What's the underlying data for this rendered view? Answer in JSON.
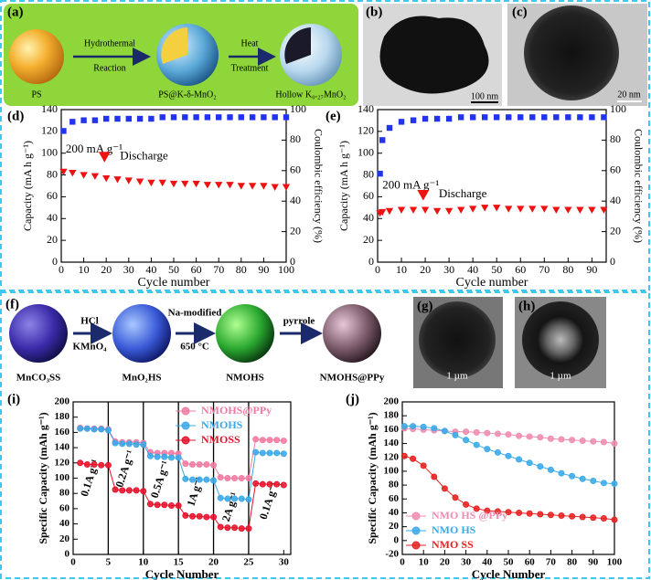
{
  "schematic_a": {
    "label": "(a)",
    "step1": [
      "Hydrothermal",
      "Reaction"
    ],
    "step2": [
      "Heat",
      "Treatment"
    ],
    "stages": [
      "PS",
      "PS@K-δ-MnO₂",
      "Hollow K₀.₂₇MnO₂"
    ]
  },
  "tem_b": {
    "label": "(b)",
    "scale": "100 nm"
  },
  "tem_c": {
    "label": "(c)",
    "scale": "20 nm"
  },
  "schematic_f": {
    "label": "(f)",
    "arrows": [
      [
        "HCl",
        "KMnO₄"
      ],
      [
        "Na-modified",
        "650 °C"
      ],
      [
        "pyrrole"
      ]
    ],
    "stages": [
      "MnCO₃SS",
      "MnO₂HS",
      "NMOHS",
      "NMOHS@PPy"
    ]
  },
  "tem_g": {
    "label": "(g)",
    "scale": "1 µm"
  },
  "tem_h": {
    "label": "(h)",
    "scale": "1 µm"
  },
  "chart_data": [
    {
      "type": "scatter",
      "label": "(d)",
      "xlabel": "Cycle number",
      "ylabel": "Capacity (mA h g⁻¹)",
      "y2label": "Coulombic efficiency (%)",
      "xlim": [
        0,
        100
      ],
      "xticks": [
        0,
        10,
        20,
        30,
        40,
        50,
        60,
        70,
        80,
        90,
        100
      ],
      "ylim": [
        0,
        140
      ],
      "yticks": [
        0,
        20,
        40,
        60,
        80,
        100,
        120,
        140
      ],
      "y2lim": [
        0,
        100
      ],
      "y2ticks": [
        0,
        20,
        40,
        60,
        80,
        100
      ],
      "connect": false,
      "legend": "center left",
      "annotations": [
        "200 mA g⁻¹"
      ],
      "x": [
        1,
        5,
        10,
        15,
        20,
        25,
        30,
        35,
        40,
        45,
        50,
        55,
        60,
        65,
        70,
        75,
        80,
        85,
        90,
        95,
        100
      ],
      "series": [
        {
          "name": "Discharge",
          "color": "#ee1111",
          "marker": "triangle",
          "values": [
            83,
            82,
            80,
            79,
            77,
            76,
            75,
            74,
            73,
            73,
            72,
            72,
            72,
            71,
            71,
            71,
            70,
            70,
            70,
            69,
            69
          ]
        },
        {
          "color": "#2233ee",
          "marker": "square",
          "axis": "y2",
          "values": [
            86,
            92,
            93,
            93,
            94,
            94,
            94,
            94,
            94,
            95,
            95,
            95,
            95,
            95,
            95,
            95,
            95,
            95,
            95,
            95,
            95
          ]
        }
      ]
    },
    {
      "type": "scatter",
      "label": "(e)",
      "xlabel": "Cycle number",
      "ylabel": "Capacity (mA h g⁻¹)",
      "y2label": "Coulombic efficiency (%)",
      "xlim": [
        0,
        96
      ],
      "xticks": [
        0,
        10,
        20,
        30,
        40,
        50,
        60,
        70,
        80,
        90
      ],
      "ylim": [
        0,
        140
      ],
      "yticks": [
        0,
        20,
        40,
        60,
        80,
        100,
        120,
        140
      ],
      "y2lim": [
        0,
        100
      ],
      "y2ticks": [
        0,
        20,
        40,
        60,
        80,
        100
      ],
      "connect": false,
      "legend": "center left",
      "annotations": [
        "200 mA g⁻¹"
      ],
      "x": [
        1,
        2,
        5,
        10,
        15,
        20,
        25,
        30,
        35,
        40,
        45,
        50,
        55,
        60,
        65,
        70,
        75,
        80,
        85,
        90,
        95
      ],
      "series": [
        {
          "name": "Discharge",
          "color": "#ee1111",
          "marker": "triangle",
          "values": [
            45,
            46,
            47,
            48,
            48,
            48,
            47,
            47,
            48,
            49,
            50,
            50,
            49,
            49,
            49,
            49,
            48,
            48,
            48,
            48,
            48
          ]
        },
        {
          "color": "#2233ee",
          "marker": "square",
          "axis": "y2",
          "values": [
            58,
            80,
            88,
            92,
            93,
            94,
            94,
            94,
            95,
            95,
            95,
            95,
            95,
            95,
            95,
            95,
            95,
            95,
            95,
            95,
            95
          ]
        }
      ]
    },
    {
      "type": "line",
      "label": "(i)",
      "xlabel": "Cycle Number",
      "ylabel": "Specific Capacity (mAh g⁻¹)",
      "xlim": [
        0,
        31
      ],
      "xticks": [
        0,
        5,
        10,
        15,
        20,
        25,
        30
      ],
      "ylim": [
        0,
        200
      ],
      "yticks": [
        0,
        20,
        40,
        60,
        80,
        100,
        120,
        140,
        160,
        180,
        200
      ],
      "connect": true,
      "legend": "upper right",
      "vlines": [
        5,
        10,
        15,
        20,
        25
      ],
      "annotations": [
        "0.1A g⁻¹",
        "0.2A g⁻¹",
        "0.5A g⁻¹",
        "1A g⁻¹",
        "2A g⁻¹",
        "0.1A g⁻¹"
      ],
      "x": [
        1,
        2,
        3,
        4,
        5,
        6,
        7,
        8,
        9,
        10,
        11,
        12,
        13,
        14,
        15,
        16,
        17,
        18,
        19,
        20,
        21,
        22,
        23,
        24,
        25,
        26,
        27,
        28,
        29,
        30
      ],
      "series": [
        {
          "name": "NMOHS@PPy",
          "color": "#f27aa0",
          "marker": "circle",
          "values": [
            166,
            165,
            165,
            165,
            164,
            148,
            147,
            147,
            147,
            146,
            134,
            133,
            133,
            133,
            132,
            119,
            118,
            118,
            118,
            117,
            101,
            100,
            100,
            100,
            100,
            151,
            150,
            150,
            150,
            149
          ]
        },
        {
          "name": "NMOHS",
          "color": "#3aa8e8",
          "marker": "circle",
          "values": [
            165,
            165,
            164,
            164,
            163,
            146,
            145,
            145,
            144,
            144,
            129,
            128,
            128,
            127,
            127,
            99,
            98,
            98,
            98,
            97,
            74,
            73,
            73,
            73,
            72,
            134,
            133,
            133,
            133,
            132
          ]
        },
        {
          "name": "NMOSS",
          "color": "#e8102a",
          "marker": "circle",
          "values": [
            120,
            118,
            118,
            117,
            117,
            85,
            84,
            84,
            84,
            83,
            66,
            65,
            65,
            64,
            64,
            51,
            50,
            50,
            49,
            49,
            36,
            35,
            35,
            34,
            34,
            93,
            92,
            92,
            92,
            91
          ]
        }
      ]
    },
    {
      "type": "line",
      "label": "(j)",
      "xlabel": "Cycle Number",
      "ylabel": "Specific Capacity (mAh g⁻¹)",
      "xlim": [
        0,
        100
      ],
      "xticks": [
        0,
        10,
        20,
        30,
        40,
        50,
        60,
        70,
        80,
        90,
        100
      ],
      "ylim": [
        -20,
        200
      ],
      "yticks": [
        -20,
        0,
        20,
        40,
        60,
        80,
        100,
        120,
        140,
        160,
        180,
        200
      ],
      "connect": true,
      "legend": "lower left",
      "x": [
        1,
        5,
        10,
        15,
        20,
        25,
        30,
        35,
        40,
        45,
        50,
        55,
        60,
        65,
        70,
        75,
        80,
        85,
        90,
        95,
        100
      ],
      "series": [
        {
          "name": "NMO HS @PPy",
          "color": "#f08cb0",
          "marker": "circle",
          "values": [
            162,
            161,
            160,
            159,
            158,
            157,
            157,
            156,
            155,
            154,
            153,
            151,
            150,
            149,
            147,
            146,
            145,
            144,
            143,
            142,
            140
          ]
        },
        {
          "name": "NMO HS",
          "color": "#3aaae8",
          "marker": "circle",
          "values": [
            165,
            165,
            164,
            162,
            158,
            152,
            145,
            138,
            132,
            127,
            122,
            117,
            112,
            107,
            102,
            97,
            93,
            89,
            86,
            83,
            82
          ]
        },
        {
          "name": "NMO SS",
          "color": "#e82020",
          "marker": "circle",
          "values": [
            122,
            118,
            108,
            92,
            75,
            62,
            52,
            46,
            43,
            42,
            41,
            40,
            39,
            38,
            37,
            36,
            35,
            34,
            33,
            32,
            30
          ]
        }
      ]
    }
  ]
}
